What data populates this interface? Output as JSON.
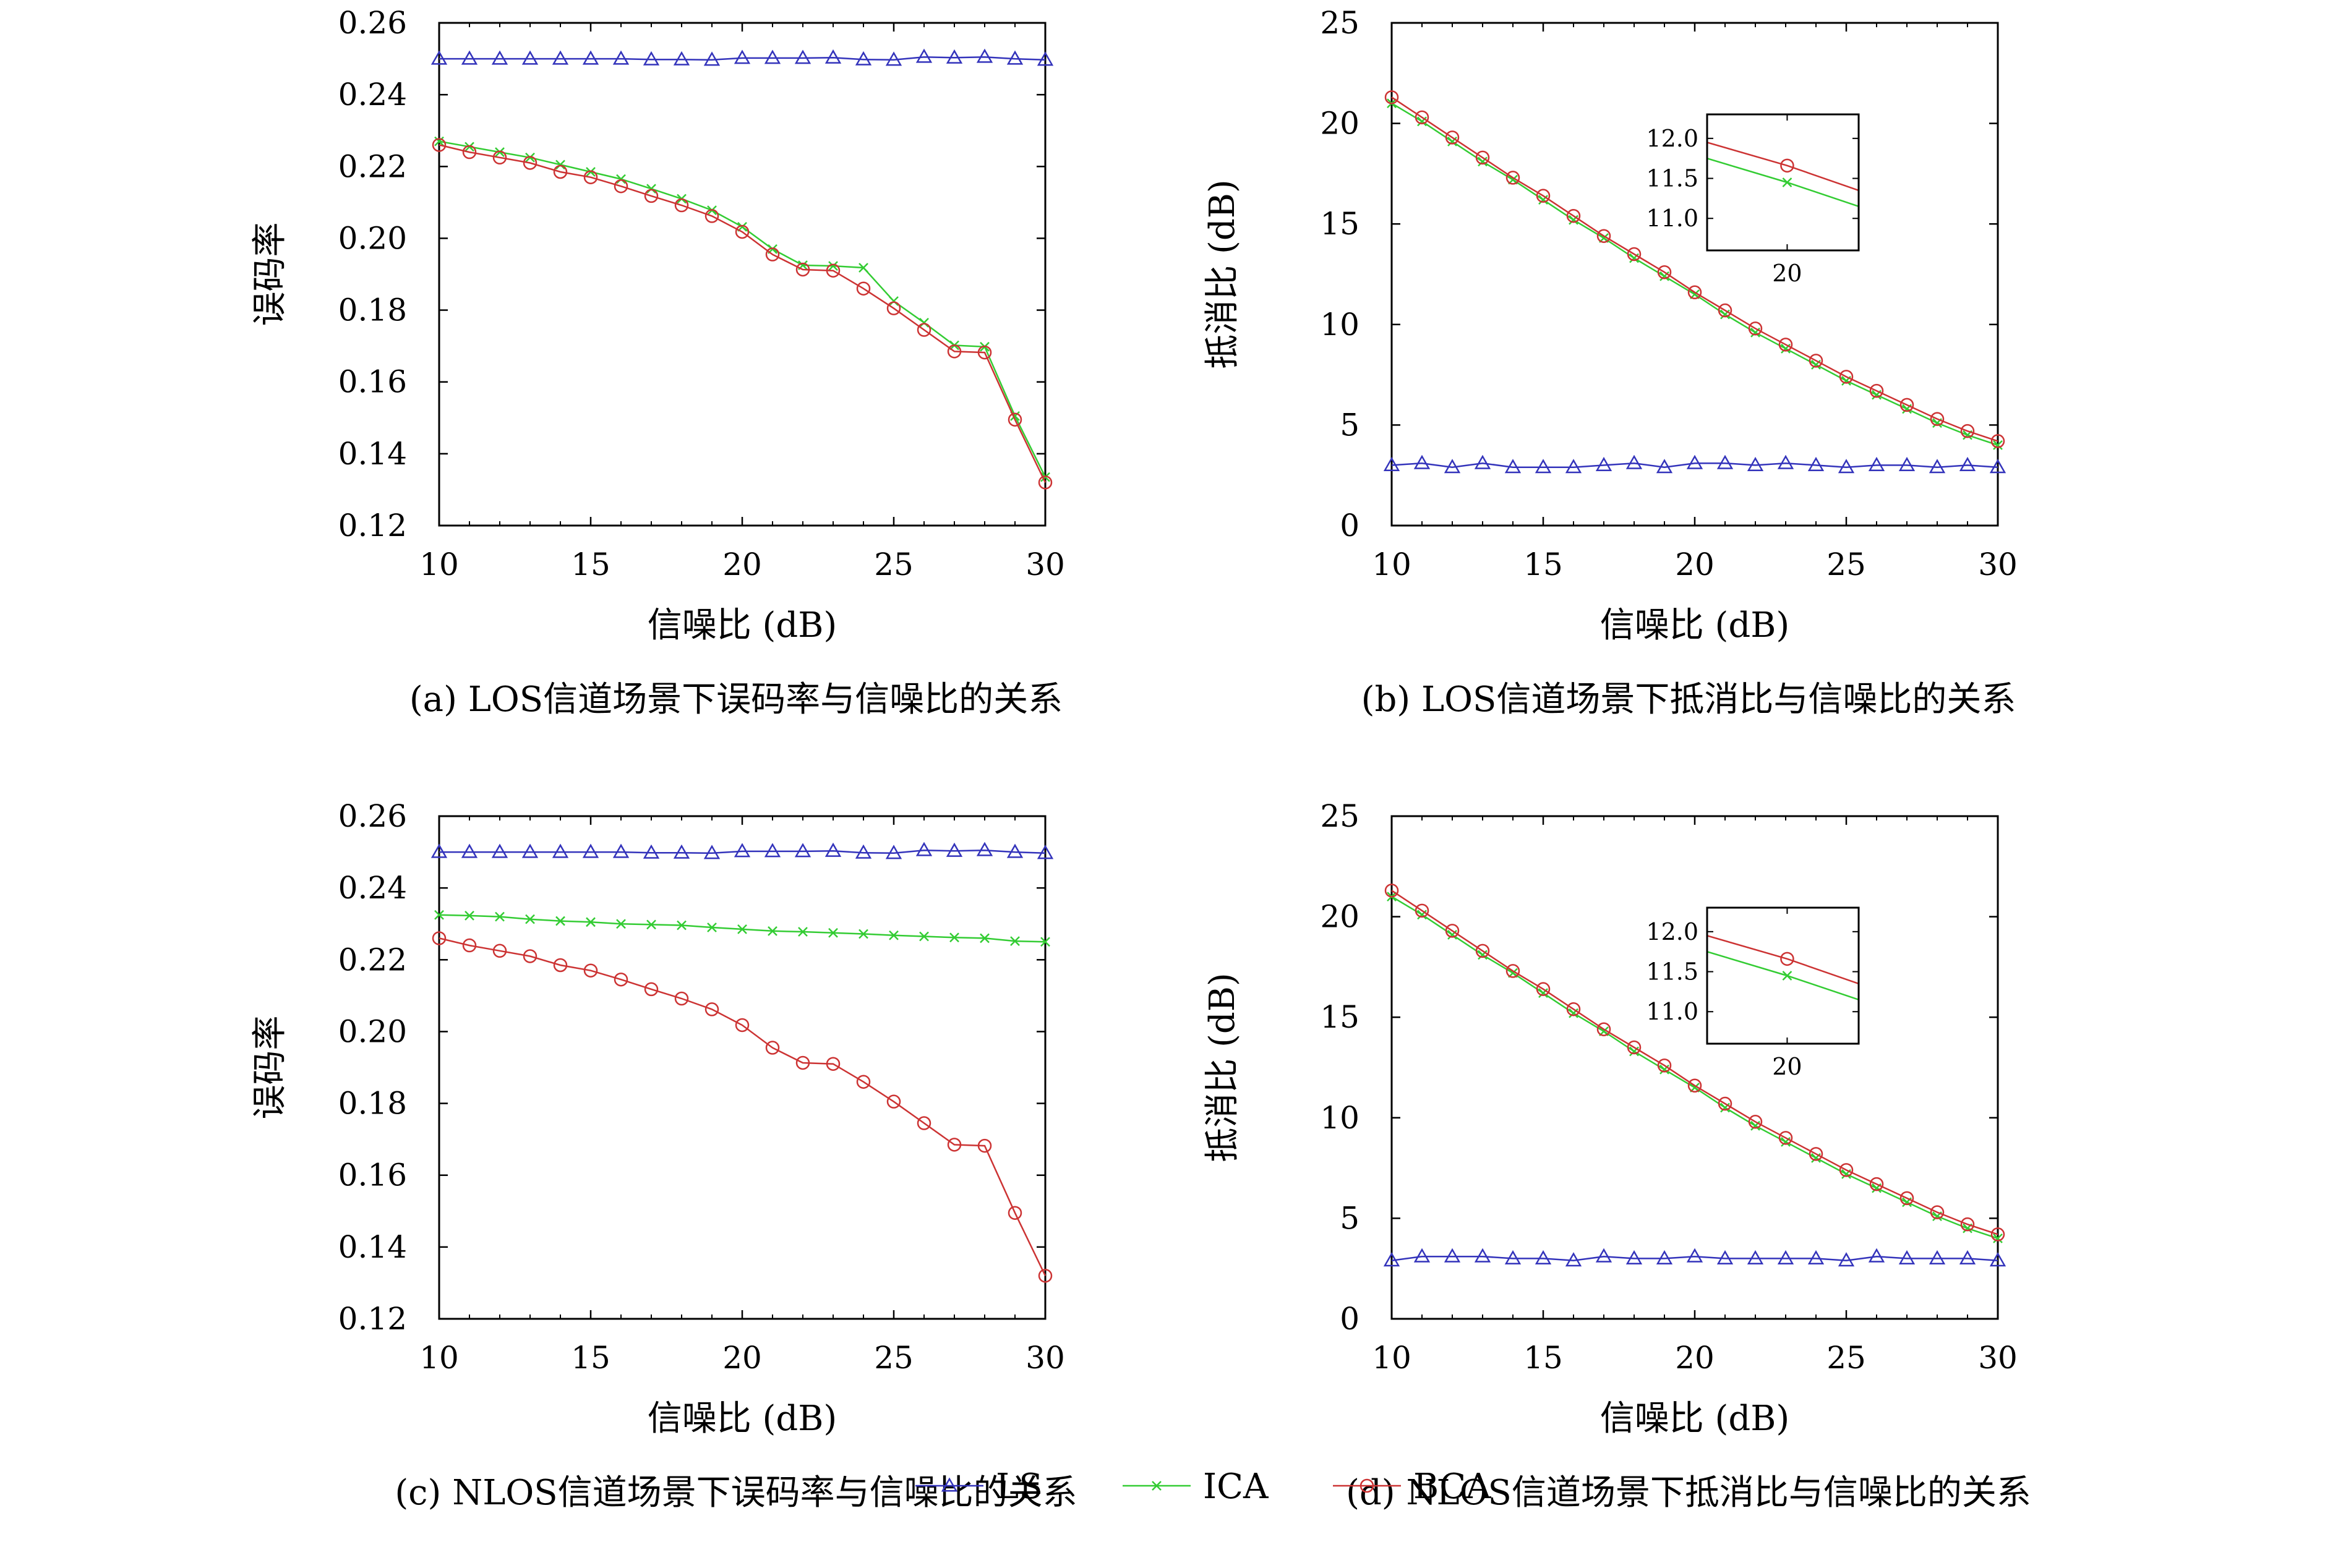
{
  "chart_data": [
    {
      "id": "a",
      "type": "line",
      "caption": "(a) LOS信道场景下误码率与信噪比的关系",
      "xlabel": "信噪比 (dB)",
      "ylabel": "误码率",
      "xlim": [
        10,
        30
      ],
      "ylim": [
        0.12,
        0.26
      ],
      "xticks": [
        10,
        15,
        20,
        25,
        30
      ],
      "yticks": [
        0.12,
        0.14,
        0.16,
        0.18,
        0.2,
        0.22,
        0.24,
        0.26
      ],
      "ytick_labels": [
        "0.12",
        "0.14",
        "0.16",
        "0.18",
        "0.20",
        "0.22",
        "0.24",
        "0.26"
      ],
      "x": [
        10,
        11,
        12,
        13,
        14,
        15,
        16,
        17,
        18,
        19,
        20,
        21,
        22,
        23,
        24,
        25,
        26,
        27,
        28,
        29,
        30
      ],
      "series": [
        {
          "name": "LS",
          "marker": "triangle",
          "color": "#3333bb",
          "values": [
            0.25,
            0.25,
            0.25,
            0.25,
            0.25,
            0.25,
            0.25,
            0.2498,
            0.2498,
            0.2497,
            0.2502,
            0.2502,
            0.2502,
            0.2503,
            0.2498,
            0.2497,
            0.2505,
            0.2503,
            0.2505,
            0.25,
            0.2497
          ]
        },
        {
          "name": "ICA",
          "marker": "x",
          "color": "#33cc33",
          "values": [
            0.227,
            0.2255,
            0.224,
            0.2225,
            0.2205,
            0.2185,
            0.2165,
            0.2138,
            0.211,
            0.2078,
            0.2032,
            0.197,
            0.1925,
            0.1923,
            0.1918,
            0.1825,
            0.1765,
            0.1702,
            0.1698,
            0.1505,
            0.1335
          ]
        },
        {
          "name": "BCA",
          "marker": "circle",
          "color": "#cc3333",
          "values": [
            0.226,
            0.224,
            0.2225,
            0.221,
            0.2185,
            0.217,
            0.2145,
            0.2118,
            0.2092,
            0.2062,
            0.2018,
            0.1955,
            0.1913,
            0.191,
            0.186,
            0.1805,
            0.1745,
            0.1685,
            0.1682,
            0.1495,
            0.132
          ]
        }
      ]
    },
    {
      "id": "b",
      "type": "line",
      "caption": "(b) LOS信道场景下抵消比与信噪比的关系",
      "xlabel": "信噪比 (dB)",
      "ylabel": "抵消比 (dB)",
      "xlim": [
        10,
        30
      ],
      "ylim": [
        0,
        25
      ],
      "xticks": [
        10,
        15,
        20,
        25,
        30
      ],
      "yticks": [
        0,
        5,
        10,
        15,
        20,
        25
      ],
      "ytick_labels": [
        "0",
        "5",
        "10",
        "15",
        "20",
        "25"
      ],
      "x": [
        10,
        11,
        12,
        13,
        14,
        15,
        16,
        17,
        18,
        19,
        20,
        21,
        22,
        23,
        24,
        25,
        26,
        27,
        28,
        29,
        30
      ],
      "series": [
        {
          "name": "LS",
          "marker": "triangle",
          "color": "#3333bb",
          "values": [
            3.0,
            3.1,
            2.9,
            3.1,
            2.9,
            2.9,
            2.9,
            3.0,
            3.1,
            2.9,
            3.1,
            3.1,
            3.0,
            3.1,
            3.0,
            2.9,
            3.0,
            3.0,
            2.9,
            3.0,
            2.9
          ]
        },
        {
          "name": "ICA",
          "marker": "x",
          "color": "#33cc33",
          "values": [
            21.0,
            20.1,
            19.1,
            18.1,
            17.2,
            16.2,
            15.2,
            14.3,
            13.3,
            12.4,
            11.5,
            10.5,
            9.6,
            8.8,
            8.0,
            7.2,
            6.5,
            5.8,
            5.1,
            4.5,
            4.0
          ]
        },
        {
          "name": "BCA",
          "marker": "circle",
          "color": "#cc3333",
          "values": [
            21.3,
            20.3,
            19.3,
            18.3,
            17.3,
            16.4,
            15.4,
            14.4,
            13.5,
            12.6,
            11.6,
            10.7,
            9.8,
            9.0,
            8.2,
            7.4,
            6.7,
            6.0,
            5.3,
            4.7,
            4.2
          ]
        }
      ],
      "inset": {
        "xlim": [
          17.2,
          22.5
        ],
        "ylim": [
          10.6,
          12.3
        ],
        "xticks": [
          20
        ],
        "yticks": [
          11.0,
          11.5,
          12.0
        ],
        "ytick_labels": [
          "11.0",
          "11.5",
          "12.0"
        ],
        "series": [
          {
            "name": "ICA",
            "x": [
              17.2,
              20,
              22.5
            ],
            "values": [
              11.75,
              11.45,
              11.15
            ]
          },
          {
            "name": "BCA",
            "x": [
              17.2,
              20,
              22.5
            ],
            "values": [
              11.95,
              11.66,
              11.35
            ]
          }
        ]
      }
    },
    {
      "id": "c",
      "type": "line",
      "caption": "(c) NLOS信道场景下误码率与信噪比的关系",
      "xlabel": "信噪比 (dB)",
      "ylabel": "误码率",
      "xlim": [
        10,
        30
      ],
      "ylim": [
        0.12,
        0.26
      ],
      "xticks": [
        10,
        15,
        20,
        25,
        30
      ],
      "yticks": [
        0.12,
        0.14,
        0.16,
        0.18,
        0.2,
        0.22,
        0.24,
        0.26
      ],
      "ytick_labels": [
        "0.12",
        "0.14",
        "0.16",
        "0.18",
        "0.20",
        "0.22",
        "0.24",
        "0.26"
      ],
      "x": [
        10,
        11,
        12,
        13,
        14,
        15,
        16,
        17,
        18,
        19,
        20,
        21,
        22,
        23,
        24,
        25,
        26,
        27,
        28,
        29,
        30
      ],
      "series": [
        {
          "name": "LS",
          "marker": "triangle",
          "color": "#3333bb",
          "values": [
            0.25,
            0.25,
            0.25,
            0.25,
            0.25,
            0.25,
            0.25,
            0.2498,
            0.2498,
            0.2497,
            0.2502,
            0.2502,
            0.2502,
            0.2503,
            0.2498,
            0.2497,
            0.2505,
            0.2503,
            0.2505,
            0.25,
            0.2497
          ]
        },
        {
          "name": "ICA",
          "marker": "x",
          "color": "#33cc33",
          "values": [
            0.2325,
            0.2323,
            0.232,
            0.2313,
            0.2308,
            0.2305,
            0.23,
            0.2298,
            0.2296,
            0.229,
            0.2285,
            0.228,
            0.2278,
            0.2275,
            0.2272,
            0.2268,
            0.2265,
            0.2262,
            0.226,
            0.2252,
            0.225
          ]
        },
        {
          "name": "BCA",
          "marker": "circle",
          "color": "#cc3333",
          "values": [
            0.226,
            0.224,
            0.2225,
            0.221,
            0.2185,
            0.217,
            0.2145,
            0.2118,
            0.2092,
            0.2062,
            0.2018,
            0.1955,
            0.1913,
            0.191,
            0.186,
            0.1805,
            0.1745,
            0.1685,
            0.1682,
            0.1495,
            0.132
          ]
        }
      ]
    },
    {
      "id": "d",
      "type": "line",
      "caption": "(d) NLOS信道场景下抵消比与信噪比的关系",
      "xlabel": "信噪比 (dB)",
      "ylabel": "抵消比 (dB)",
      "xlim": [
        10,
        30
      ],
      "ylim": [
        0,
        25
      ],
      "xticks": [
        10,
        15,
        20,
        25,
        30
      ],
      "yticks": [
        0,
        5,
        10,
        15,
        20,
        25
      ],
      "ytick_labels": [
        "0",
        "5",
        "10",
        "15",
        "20",
        "25"
      ],
      "x": [
        10,
        11,
        12,
        13,
        14,
        15,
        16,
        17,
        18,
        19,
        20,
        21,
        22,
        23,
        24,
        25,
        26,
        27,
        28,
        29,
        30
      ],
      "series": [
        {
          "name": "LS",
          "marker": "triangle",
          "color": "#3333bb",
          "values": [
            2.9,
            3.1,
            3.1,
            3.1,
            3.0,
            3.0,
            2.9,
            3.1,
            3.0,
            3.0,
            3.1,
            3.0,
            3.0,
            3.0,
            3.0,
            2.9,
            3.1,
            3.0,
            3.0,
            3.0,
            2.9
          ]
        },
        {
          "name": "ICA",
          "marker": "x",
          "color": "#33cc33",
          "values": [
            21.0,
            20.1,
            19.1,
            18.1,
            17.2,
            16.2,
            15.2,
            14.3,
            13.3,
            12.4,
            11.5,
            10.5,
            9.6,
            8.8,
            8.0,
            7.2,
            6.5,
            5.8,
            5.1,
            4.5,
            4.0
          ]
        },
        {
          "name": "BCA",
          "marker": "circle",
          "color": "#cc3333",
          "values": [
            21.3,
            20.3,
            19.3,
            18.3,
            17.3,
            16.4,
            15.4,
            14.4,
            13.5,
            12.6,
            11.6,
            10.7,
            9.8,
            9.0,
            8.2,
            7.4,
            6.7,
            6.0,
            5.3,
            4.7,
            4.2
          ]
        }
      ],
      "inset": {
        "xlim": [
          17.2,
          22.5
        ],
        "ylim": [
          10.6,
          12.3
        ],
        "xticks": [
          20
        ],
        "yticks": [
          11.0,
          11.5,
          12.0
        ],
        "ytick_labels": [
          "11.0",
          "11.5",
          "12.0"
        ],
        "series": [
          {
            "name": "ICA",
            "x": [
              17.2,
              20,
              22.5
            ],
            "values": [
              11.75,
              11.45,
              11.15
            ]
          },
          {
            "name": "BCA",
            "x": [
              17.2,
              20,
              22.5
            ],
            "values": [
              11.95,
              11.66,
              11.35
            ]
          }
        ]
      }
    }
  ],
  "legend": {
    "placement": "bottom-center",
    "entries": [
      {
        "name": "LS",
        "marker": "triangle",
        "color": "#3333bb"
      },
      {
        "name": "ICA",
        "marker": "x",
        "color": "#33cc33"
      },
      {
        "name": "BCA",
        "marker": "circle",
        "color": "#cc3333"
      }
    ]
  }
}
